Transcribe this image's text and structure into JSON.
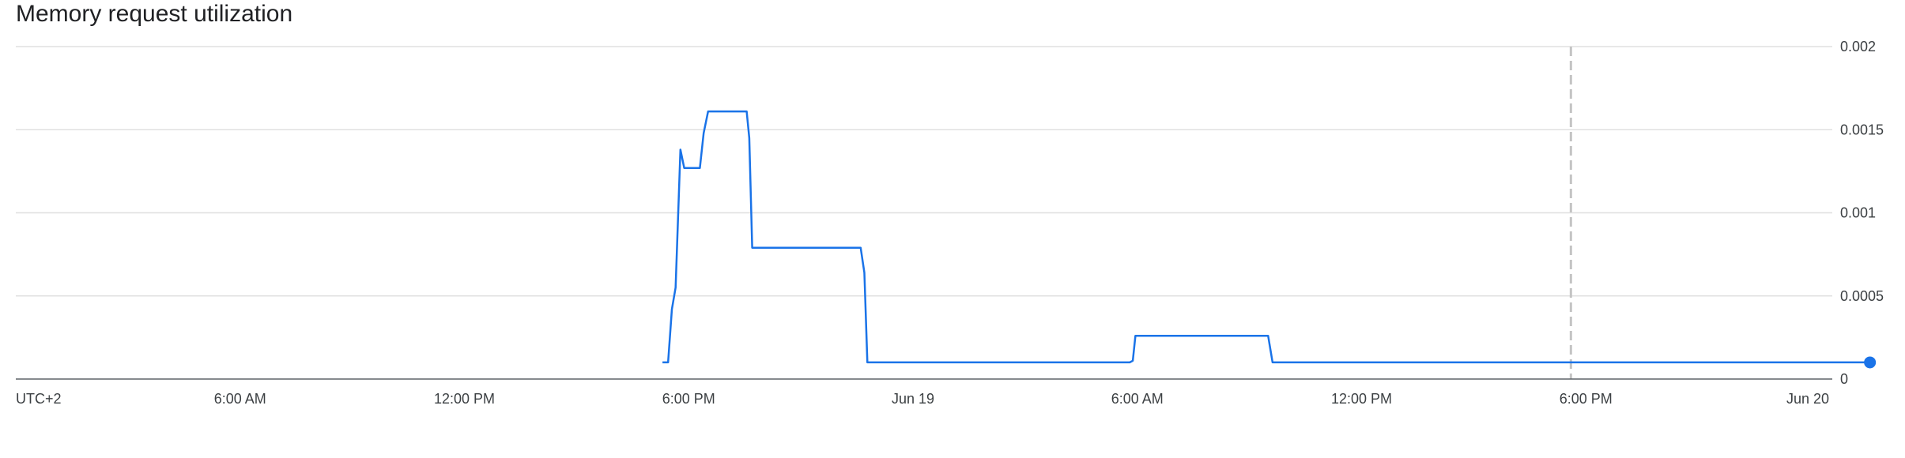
{
  "chart_data": {
    "type": "line",
    "title": "Memory request utilization",
    "xlabel": "",
    "ylabel": "",
    "timezone_label": "UTC+2",
    "x_ticks": [
      {
        "label": "UTC+2",
        "hour": 0
      },
      {
        "label": "6:00 AM",
        "hour": 6
      },
      {
        "label": "12:00 PM",
        "hour": 12
      },
      {
        "label": "6:00 PM",
        "hour": 18
      },
      {
        "label": "Jun 19",
        "hour": 24
      },
      {
        "label": "6:00 AM",
        "hour": 30
      },
      {
        "label": "12:00 PM",
        "hour": 36
      },
      {
        "label": "6:00 PM",
        "hour": 42
      },
      {
        "label": "Jun 20",
        "hour": 48
      }
    ],
    "xlim_hours": [
      0,
      50
    ],
    "y_ticks": [
      {
        "label": "0",
        "value": 0
      },
      {
        "label": "0.0005",
        "value": 0.0005
      },
      {
        "label": "0.001",
        "value": 0.001
      },
      {
        "label": "0.0015",
        "value": 0.0015
      },
      {
        "label": "0.002",
        "value": 0.002
      }
    ],
    "ylim": [
      0,
      0.002
    ],
    "grid": true,
    "marker_line_hour": 41.6,
    "series": [
      {
        "color": "#1a73e8",
        "points": [
          [
            17.3,
            0.0001
          ],
          [
            17.45,
            0.0001
          ],
          [
            17.55,
            0.00042
          ],
          [
            17.65,
            0.00055
          ],
          [
            17.78,
            0.00138
          ],
          [
            17.88,
            0.00127
          ],
          [
            18.3,
            0.00127
          ],
          [
            18.4,
            0.00148
          ],
          [
            18.52,
            0.00161
          ],
          [
            19.55,
            0.00161
          ],
          [
            19.62,
            0.00145
          ],
          [
            19.7,
            0.00079
          ],
          [
            22.6,
            0.00079
          ],
          [
            22.7,
            0.00064
          ],
          [
            22.78,
            0.0001
          ],
          [
            29.8,
            0.0001
          ],
          [
            29.88,
            0.00011
          ],
          [
            29.95,
            0.00026
          ],
          [
            33.5,
            0.00026
          ],
          [
            33.62,
            0.0001
          ],
          [
            49.6,
            0.0001
          ]
        ],
        "end_value": 0.0001
      }
    ]
  }
}
